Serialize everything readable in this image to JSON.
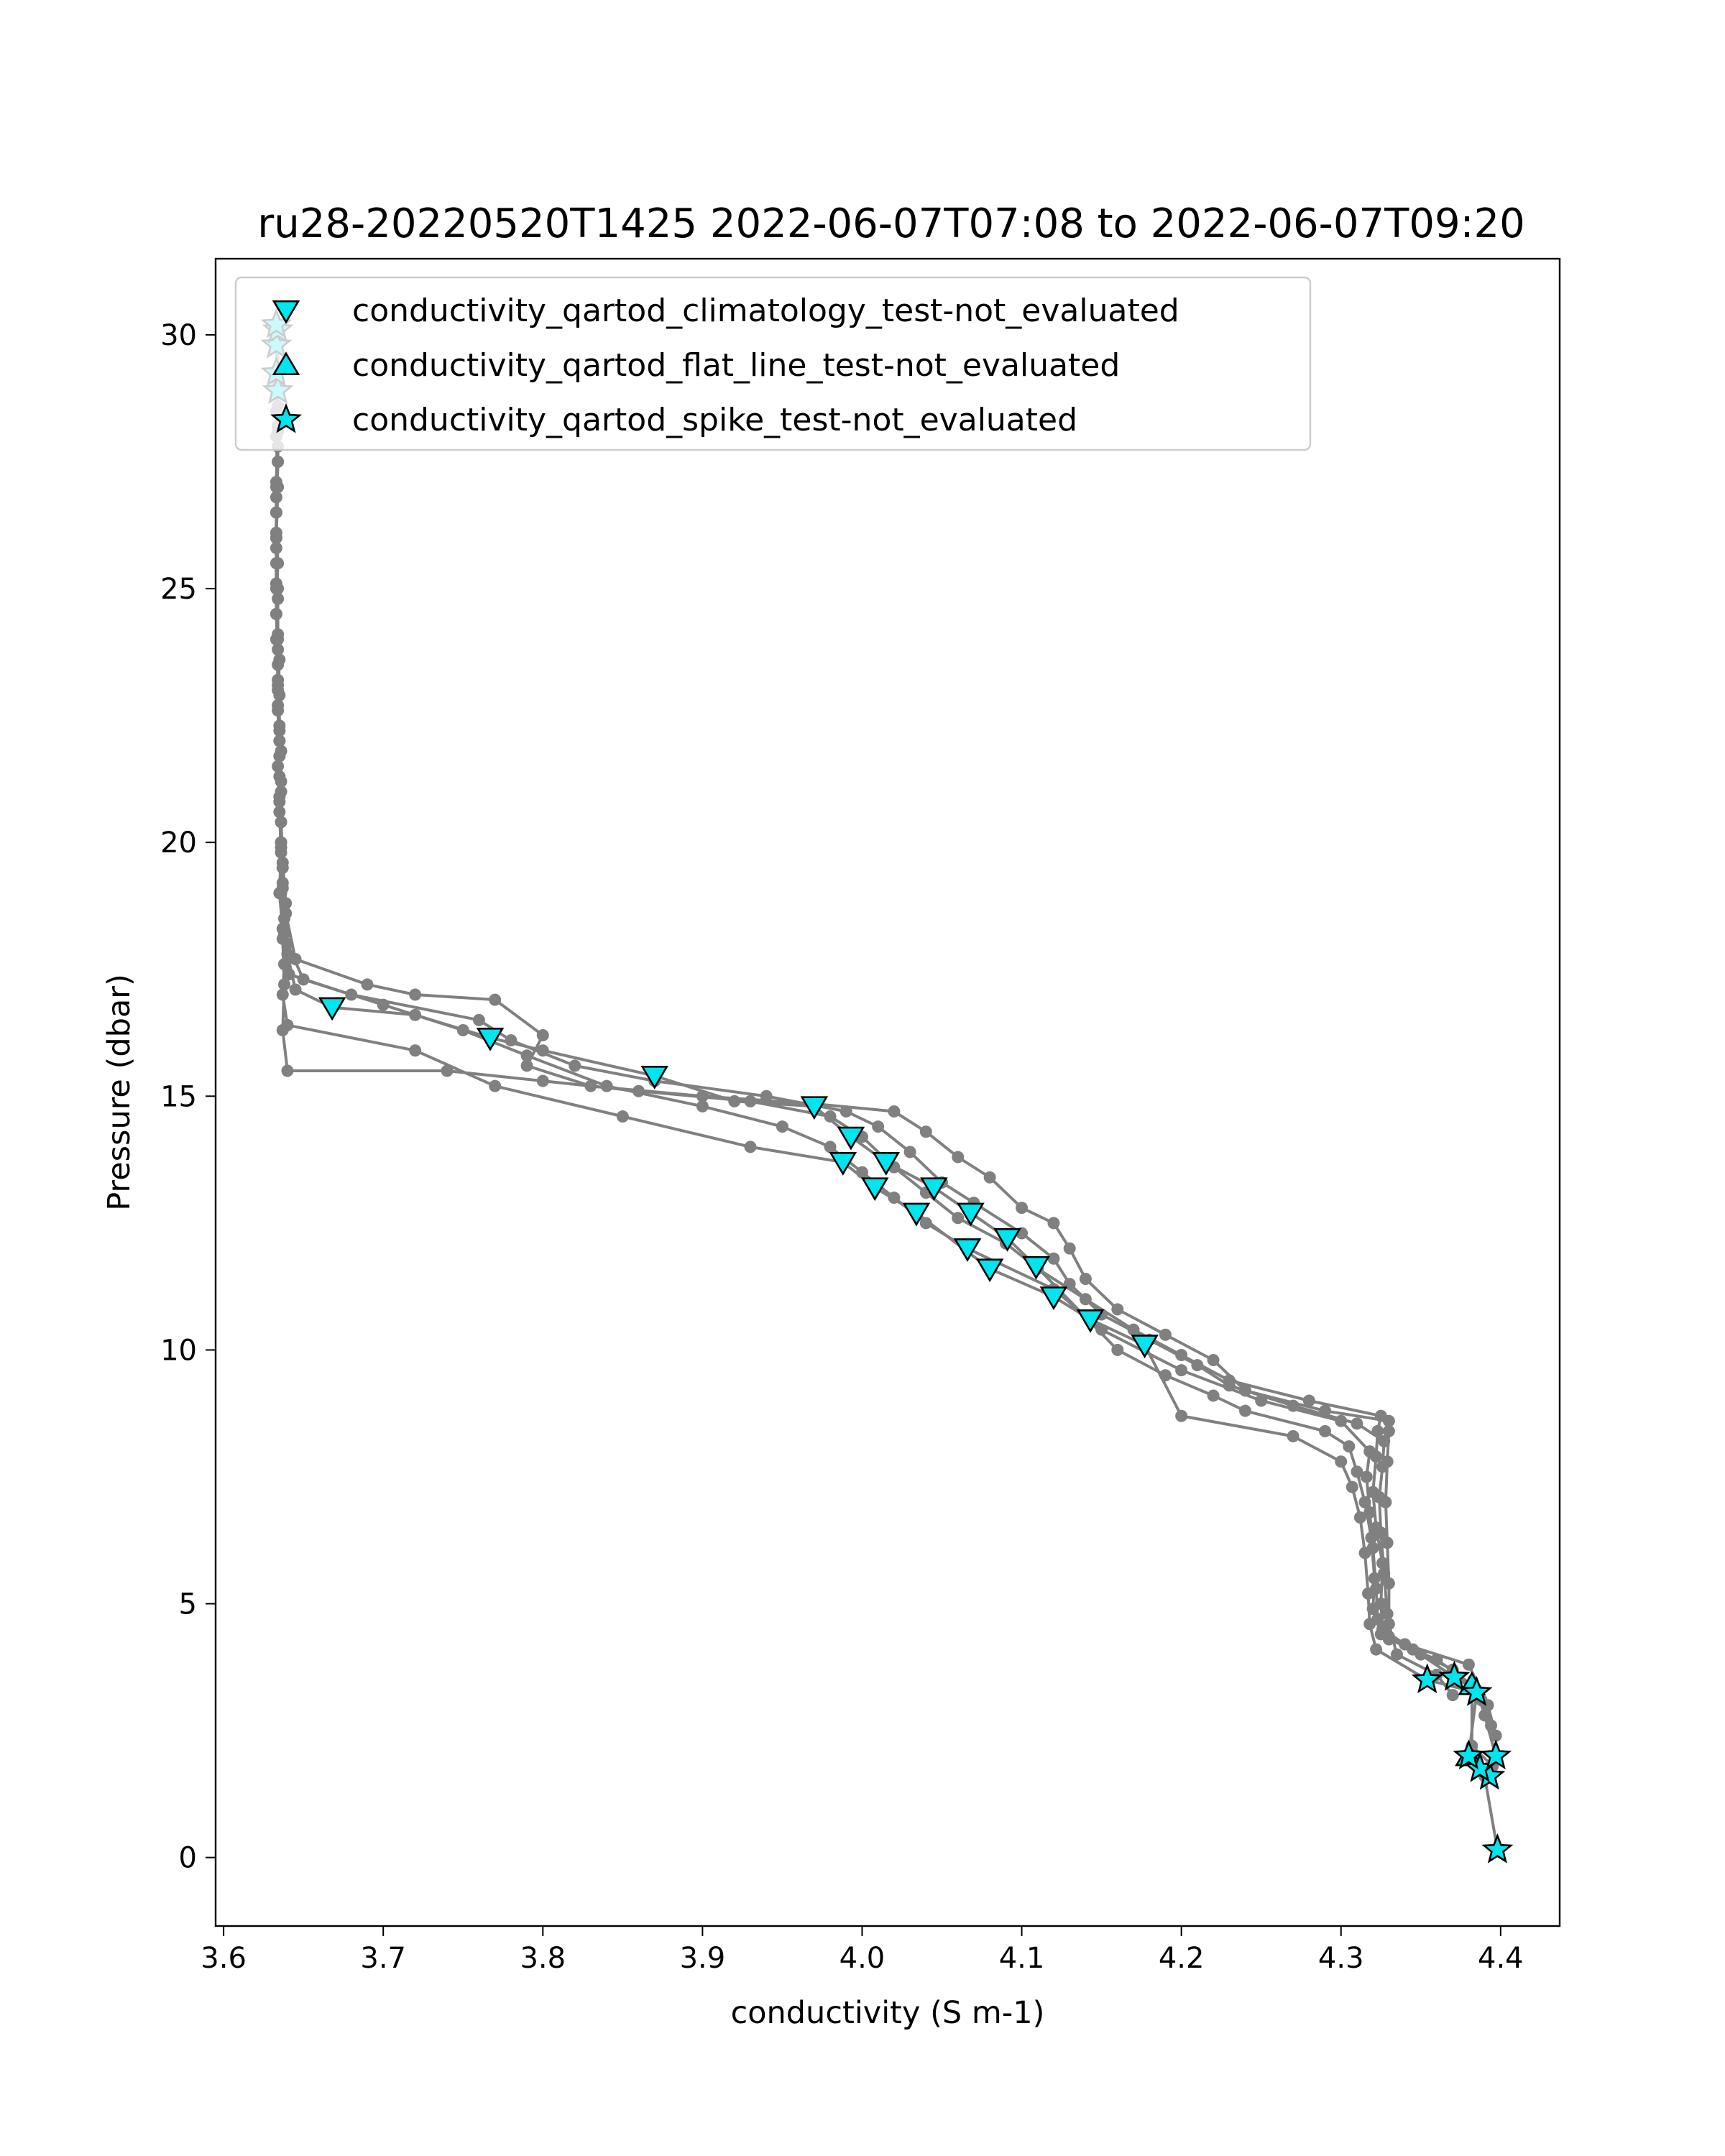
{
  "chart_data": {
    "type": "scatter",
    "title": "ru28-20220520T1425 2022-06-07T07:08 to 2022-06-07T09:20",
    "xlabel": "conductivity (S m-1)",
    "ylabel": "Pressure (dbar)",
    "xlim": [
      3.595,
      4.437
    ],
    "ylim": [
      31.5,
      -1.35
    ],
    "y_inverted": true,
    "x_ticks": [
      "3.6",
      "3.7",
      "3.8",
      "3.9",
      "4.0",
      "4.1",
      "4.2",
      "4.3",
      "4.4"
    ],
    "y_ticks": [
      "0",
      "5",
      "10",
      "15",
      "20",
      "25",
      "30"
    ],
    "legend_position": "upper-left",
    "grid": false,
    "profile_color": "#808080",
    "marker_color": "#00e5ee",
    "series": [
      {
        "name": "conductivity_qartod_climatology_test-not_evaluated",
        "marker": "triangle-down",
        "points": [
          [
            4.177,
            10.1
          ],
          [
            4.143,
            10.6
          ],
          [
            4.12,
            11.05
          ],
          [
            4.109,
            11.65
          ],
          [
            4.08,
            11.6
          ],
          [
            4.066,
            12.0
          ],
          [
            4.091,
            12.2
          ],
          [
            4.034,
            12.7
          ],
          [
            4.068,
            12.7
          ],
          [
            4.008,
            13.2
          ],
          [
            4.045,
            13.2
          ],
          [
            3.988,
            13.7
          ],
          [
            4.015,
            13.7
          ],
          [
            3.993,
            14.2
          ],
          [
            3.97,
            14.8
          ],
          [
            3.87,
            15.4
          ],
          [
            3.767,
            16.15
          ],
          [
            3.668,
            16.75
          ]
        ]
      },
      {
        "name": "conductivity_qartod_flat_line_test-not_evaluated",
        "marker": "triangle-up",
        "points": [
          [
            4.38,
            2.0
          ],
          [
            4.382,
            3.4
          ]
        ]
      },
      {
        "name": "conductivity_qartod_spike_test-not_evaluated",
        "marker": "star",
        "points": [
          [
            4.398,
            0.15
          ],
          [
            4.393,
            1.6
          ],
          [
            4.387,
            1.75
          ],
          [
            4.38,
            2.0
          ],
          [
            4.397,
            2.0
          ],
          [
            4.385,
            3.25
          ],
          [
            4.371,
            3.55
          ],
          [
            4.354,
            3.5
          ],
          [
            3.634,
            28.9
          ],
          [
            3.633,
            29.25
          ],
          [
            3.633,
            29.8
          ],
          [
            3.634,
            30.1
          ],
          [
            3.633,
            30.2
          ]
        ]
      }
    ],
    "profiles": [
      [
        [
          4.398,
          0.15
        ],
        [
          4.39,
          1.6
        ],
        [
          4.38,
          2.0
        ],
        [
          4.385,
          3.25
        ],
        [
          4.354,
          3.5
        ],
        [
          4.322,
          4.1
        ],
        [
          4.318,
          4.6
        ],
        [
          4.317,
          5.2
        ],
        [
          4.315,
          6.0
        ],
        [
          4.312,
          6.7
        ],
        [
          4.307,
          7.3
        ],
        [
          4.3,
          7.8
        ],
        [
          4.27,
          8.3
        ],
        [
          4.2,
          8.7
        ],
        [
          4.177,
          10.1
        ],
        [
          4.143,
          10.6
        ],
        [
          4.12,
          11.05
        ],
        [
          4.08,
          11.6
        ],
        [
          4.034,
          12.7
        ],
        [
          4.008,
          13.2
        ],
        [
          3.988,
          13.7
        ],
        [
          3.93,
          14.0
        ],
        [
          3.85,
          14.6
        ],
        [
          3.77,
          15.2
        ],
        [
          3.72,
          15.9
        ],
        [
          3.64,
          16.4
        ],
        [
          3.637,
          17.0
        ],
        [
          3.638,
          17.6
        ],
        [
          3.637,
          18.3
        ],
        [
          3.635,
          19.0
        ],
        [
          3.636,
          19.8
        ],
        [
          3.635,
          20.6
        ],
        [
          3.634,
          21.5
        ],
        [
          3.635,
          22.3
        ],
        [
          3.634,
          23.2
        ],
        [
          3.633,
          24.0
        ],
        [
          3.634,
          25.0
        ],
        [
          3.633,
          26.0
        ],
        [
          3.634,
          27.0
        ],
        [
          3.633,
          28.0
        ],
        [
          3.634,
          28.9
        ]
      ],
      [
        [
          4.393,
          1.6
        ],
        [
          4.387,
          1.75
        ],
        [
          4.397,
          2.0
        ],
        [
          4.39,
          2.8
        ],
        [
          4.385,
          3.3
        ],
        [
          4.371,
          3.55
        ],
        [
          4.35,
          4.0
        ],
        [
          4.325,
          4.4
        ],
        [
          4.32,
          4.9
        ],
        [
          4.321,
          5.5
        ],
        [
          4.319,
          6.3
        ],
        [
          4.315,
          7.0
        ],
        [
          4.31,
          7.6
        ],
        [
          4.305,
          8.1
        ],
        [
          4.29,
          8.4
        ],
        [
          4.24,
          8.8
        ],
        [
          4.22,
          9.1
        ],
        [
          4.19,
          9.5
        ],
        [
          4.16,
          10.0
        ],
        [
          4.109,
          11.65
        ],
        [
          4.091,
          12.2
        ],
        [
          4.068,
          12.7
        ],
        [
          4.045,
          13.2
        ],
        [
          4.015,
          13.7
        ],
        [
          3.993,
          14.2
        ],
        [
          3.97,
          14.8
        ],
        [
          3.92,
          14.9
        ],
        [
          3.87,
          15.4
        ],
        [
          3.8,
          15.9
        ],
        [
          3.767,
          16.15
        ],
        [
          3.72,
          16.6
        ],
        [
          3.668,
          16.75
        ],
        [
          3.645,
          17.1
        ],
        [
          3.64,
          17.8
        ],
        [
          3.638,
          18.5
        ],
        [
          3.637,
          19.2
        ],
        [
          3.636,
          20.0
        ],
        [
          3.635,
          20.9
        ],
        [
          3.636,
          21.8
        ],
        [
          3.634,
          22.7
        ],
        [
          3.635,
          23.6
        ],
        [
          3.633,
          24.5
        ],
        [
          3.634,
          25.5
        ],
        [
          3.633,
          26.5
        ],
        [
          3.634,
          27.5
        ],
        [
          3.633,
          28.5
        ],
        [
          3.633,
          29.25
        ]
      ],
      [
        [
          4.395,
          1.8
        ],
        [
          4.382,
          2.2
        ],
        [
          4.382,
          3.4
        ],
        [
          4.36,
          3.9
        ],
        [
          4.33,
          4.3
        ],
        [
          4.323,
          4.7
        ],
        [
          4.322,
          5.3
        ],
        [
          4.32,
          6.1
        ],
        [
          4.318,
          6.8
        ],
        [
          4.316,
          7.5
        ],
        [
          4.318,
          8.0
        ],
        [
          4.3,
          8.6
        ],
        [
          4.25,
          9.0
        ],
        [
          4.2,
          9.6
        ],
        [
          4.15,
          10.4
        ],
        [
          4.12,
          11.2
        ],
        [
          4.066,
          12.0
        ],
        [
          4.04,
          12.5
        ],
        [
          4.02,
          13.0
        ],
        [
          4.0,
          13.5
        ],
        [
          3.98,
          14.0
        ],
        [
          3.95,
          14.4
        ],
        [
          3.9,
          14.8
        ],
        [
          3.84,
          15.2
        ],
        [
          3.79,
          15.8
        ],
        [
          3.75,
          16.3
        ],
        [
          3.7,
          16.8
        ],
        [
          3.65,
          17.3
        ],
        [
          3.64,
          18.0
        ],
        [
          3.639,
          18.8
        ],
        [
          3.637,
          19.6
        ],
        [
          3.636,
          20.4
        ],
        [
          3.636,
          21.2
        ],
        [
          3.635,
          22.0
        ],
        [
          3.635,
          22.9
        ],
        [
          3.634,
          23.8
        ],
        [
          3.634,
          24.8
        ],
        [
          3.633,
          25.8
        ],
        [
          3.633,
          26.8
        ],
        [
          3.634,
          27.8
        ],
        [
          3.634,
          29.0
        ],
        [
          3.633,
          29.8
        ]
      ],
      [
        [
          4.397,
          2.4
        ],
        [
          4.392,
          3.0
        ],
        [
          4.38,
          3.8
        ],
        [
          4.34,
          4.2
        ],
        [
          4.326,
          4.5
        ],
        [
          4.325,
          5.0
        ],
        [
          4.326,
          5.8
        ],
        [
          4.322,
          6.5
        ],
        [
          4.32,
          7.2
        ],
        [
          4.322,
          7.9
        ],
        [
          4.323,
          8.4
        ],
        [
          4.325,
          8.7
        ],
        [
          4.28,
          9.0
        ],
        [
          4.23,
          9.4
        ],
        [
          4.2,
          9.9
        ],
        [
          4.17,
          10.4
        ],
        [
          4.14,
          11.0
        ],
        [
          4.11,
          11.6
        ],
        [
          4.09,
          12.1
        ],
        [
          4.06,
          12.6
        ],
        [
          4.04,
          13.1
        ],
        [
          4.02,
          13.6
        ],
        [
          4.0,
          14.2
        ],
        [
          3.98,
          14.6
        ],
        [
          3.93,
          14.9
        ],
        [
          3.86,
          15.1
        ],
        [
          3.8,
          15.3
        ],
        [
          3.74,
          15.5
        ],
        [
          3.64,
          15.5
        ],
        [
          3.637,
          16.3
        ],
        [
          3.638,
          17.2
        ],
        [
          3.637,
          18.1
        ],
        [
          3.636,
          19.0
        ],
        [
          3.636,
          19.9
        ],
        [
          3.635,
          20.8
        ],
        [
          3.635,
          21.7
        ],
        [
          3.634,
          22.6
        ],
        [
          3.634,
          23.5
        ],
        [
          3.633,
          24.5
        ],
        [
          3.633,
          25.5
        ],
        [
          3.633,
          26.5
        ],
        [
          3.634,
          27.5
        ],
        [
          3.634,
          28.6
        ],
        [
          3.634,
          30.1
        ]
      ],
      [
        [
          4.394,
          2.6
        ],
        [
          4.388,
          3.1
        ],
        [
          4.37,
          3.7
        ],
        [
          4.345,
          4.1
        ],
        [
          4.33,
          4.35
        ],
        [
          4.329,
          4.8
        ],
        [
          4.327,
          5.6
        ],
        [
          4.325,
          6.4
        ],
        [
          4.324,
          7.1
        ],
        [
          4.326,
          7.7
        ],
        [
          4.327,
          8.2
        ],
        [
          4.31,
          8.55
        ],
        [
          4.27,
          8.9
        ],
        [
          4.23,
          9.3
        ],
        [
          4.21,
          9.7
        ],
        [
          4.18,
          10.2
        ],
        [
          4.15,
          10.7
        ],
        [
          4.13,
          11.3
        ],
        [
          4.12,
          11.8
        ],
        [
          4.1,
          12.3
        ],
        [
          4.07,
          12.9
        ],
        [
          4.05,
          13.3
        ],
        [
          4.03,
          13.9
        ],
        [
          4.01,
          14.4
        ],
        [
          3.99,
          14.7
        ],
        [
          3.94,
          15.0
        ],
        [
          3.87,
          15.3
        ],
        [
          3.82,
          15.6
        ],
        [
          3.78,
          16.1
        ],
        [
          3.76,
          16.5
        ],
        [
          3.68,
          17.0
        ],
        [
          3.641,
          17.4
        ],
        [
          3.638,
          18.2
        ],
        [
          3.637,
          19.1
        ],
        [
          3.636,
          20.0
        ],
        [
          3.636,
          21.0
        ],
        [
          3.635,
          22.0
        ],
        [
          3.634,
          23.0
        ],
        [
          3.634,
          24.0
        ],
        [
          3.633,
          25.0
        ],
        [
          3.633,
          26.0
        ],
        [
          3.633,
          27.0
        ],
        [
          3.634,
          28.2
        ],
        [
          3.633,
          30.2
        ]
      ],
      [
        [
          4.37,
          3.2
        ],
        [
          4.36,
          3.6
        ],
        [
          4.335,
          4.0
        ],
        [
          4.33,
          4.6
        ],
        [
          4.33,
          5.4
        ],
        [
          4.329,
          6.2
        ],
        [
          4.328,
          7.0
        ],
        [
          4.329,
          7.8
        ],
        [
          4.33,
          8.4
        ],
        [
          4.33,
          8.6
        ],
        [
          4.29,
          8.8
        ],
        [
          4.24,
          9.2
        ],
        [
          4.22,
          9.8
        ],
        [
          4.19,
          10.3
        ],
        [
          4.16,
          10.8
        ],
        [
          4.14,
          11.4
        ],
        [
          4.13,
          12.0
        ],
        [
          4.12,
          12.5
        ],
        [
          4.1,
          12.8
        ],
        [
          4.08,
          13.4
        ],
        [
          4.06,
          13.8
        ],
        [
          4.04,
          14.3
        ],
        [
          4.02,
          14.7
        ],
        [
          3.97,
          14.85
        ],
        [
          3.9,
          15.0
        ],
        [
          3.83,
          15.2
        ],
        [
          3.79,
          15.6
        ],
        [
          3.8,
          16.2
        ],
        [
          3.77,
          16.9
        ],
        [
          3.72,
          17.0
        ],
        [
          3.69,
          17.2
        ],
        [
          3.645,
          17.7
        ],
        [
          3.639,
          18.6
        ],
        [
          3.637,
          19.5
        ],
        [
          3.636,
          20.4
        ],
        [
          3.635,
          21.3
        ],
        [
          3.635,
          22.2
        ],
        [
          3.634,
          23.1
        ],
        [
          3.634,
          24.1
        ],
        [
          3.633,
          25.1
        ],
        [
          3.633,
          26.1
        ],
        [
          3.633,
          27.1
        ],
        [
          3.634,
          28.1
        ],
        [
          3.634,
          29.0
        ]
      ]
    ]
  }
}
